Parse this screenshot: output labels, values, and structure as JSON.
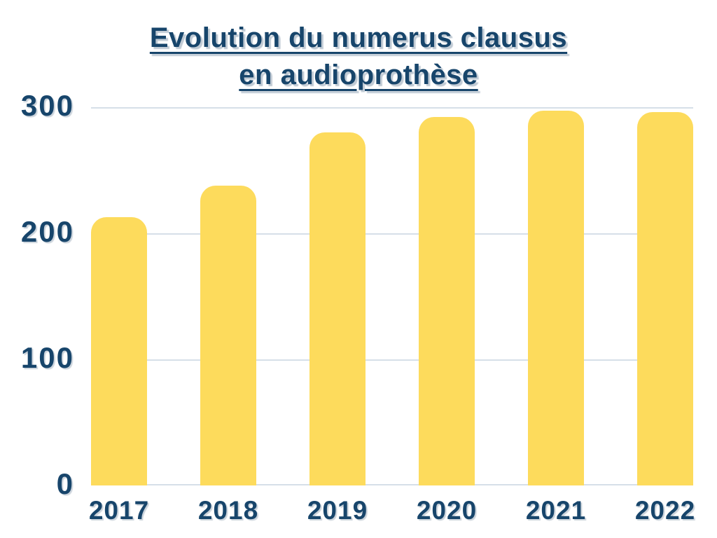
{
  "title": {
    "line1": "Evolution du numerus clausus",
    "line2": "en audioprothèse"
  },
  "chart_data": {
    "type": "bar",
    "title": "Evolution du numerus clausus en audioprothèse",
    "categories": [
      "2017",
      "2018",
      "2019",
      "2020",
      "2021",
      "2022"
    ],
    "values": [
      213,
      238,
      280,
      292,
      297,
      296
    ],
    "xlabel": "",
    "ylabel": "",
    "ylim": [
      0,
      300
    ],
    "yticks": [
      0,
      100,
      200,
      300
    ],
    "grid": true,
    "legend": false,
    "colors": {
      "bar": "#FDDB5C",
      "text": "#17456B",
      "gridline": "#D6DFE8",
      "background": "#FFFFFF"
    }
  }
}
